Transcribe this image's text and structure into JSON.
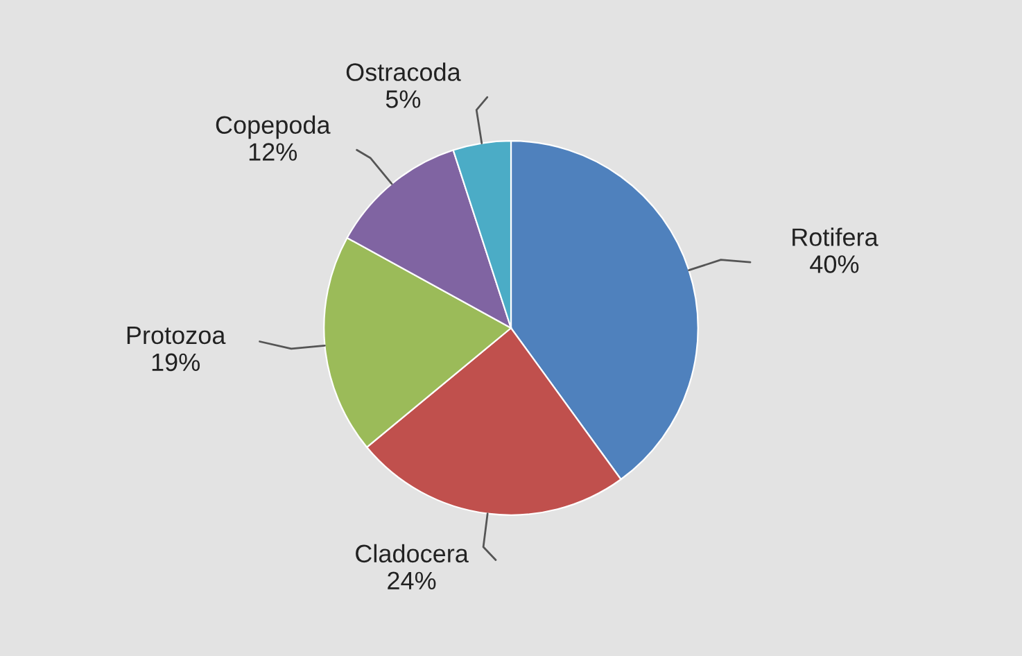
{
  "chart_data": {
    "type": "pie",
    "categories": [
      "Rotifera",
      "Cladocera",
      "Protozoa",
      "Copepoda",
      "Ostracoda"
    ],
    "values": [
      40,
      24,
      19,
      12,
      5
    ],
    "value_labels": [
      "40%",
      "24%",
      "19%",
      "12%",
      "5%"
    ],
    "colors": [
      "#4f81bd",
      "#c0504d",
      "#9bbb59",
      "#8064a2",
      "#4bacc6"
    ],
    "legend": false
  }
}
